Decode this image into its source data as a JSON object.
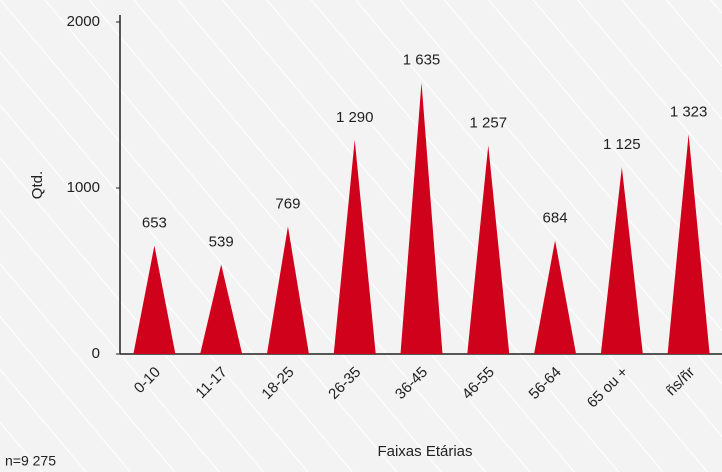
{
  "chart_data": {
    "type": "triangle_bar",
    "y_label": "Qtd.",
    "x_label": "Faixas Etárias",
    "note": "n=9 275",
    "categories": [
      "0-10",
      "11-17",
      "18-25",
      "26-35",
      "36-45",
      "46-55",
      "56-64",
      "65 ou +",
      "ñs/ñr"
    ],
    "values": [
      653,
      539,
      769,
      1290,
      1635,
      1257,
      684,
      1125,
      1323
    ],
    "value_labels": [
      "653",
      "539",
      "769",
      "1 290",
      "1 635",
      "1 257",
      "684",
      "1 125",
      "1 323"
    ],
    "color": "#d0021b",
    "ylim": [
      0,
      2000
    ],
    "yticks": [
      0,
      1000,
      2000
    ]
  }
}
